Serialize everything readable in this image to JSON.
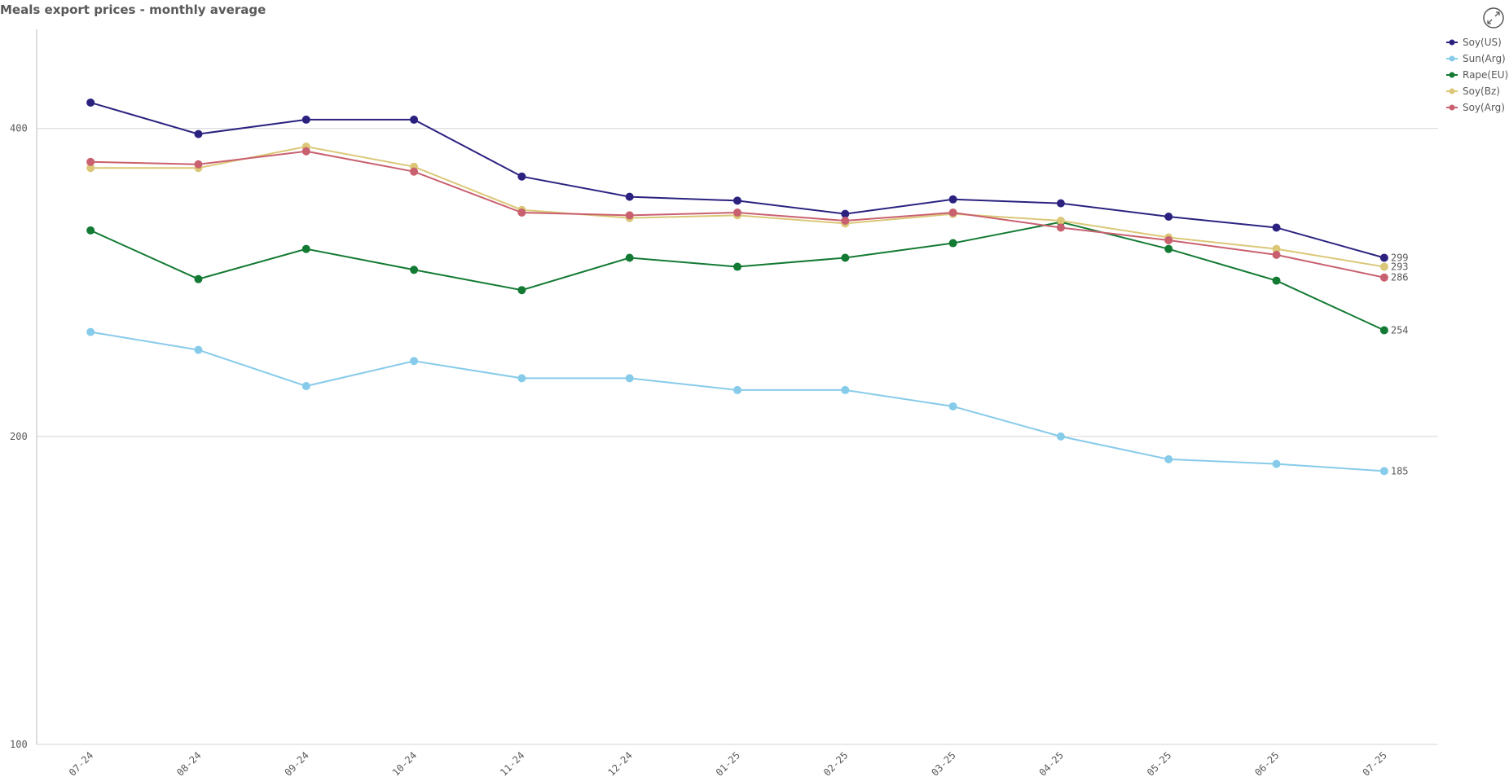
{
  "chart_data": {
    "type": "line",
    "title": "Meals export prices - monthly average",
    "categories": [
      "07-24",
      "08-24",
      "09-24",
      "10-24",
      "11-24",
      "12-24",
      "01-25",
      "02-25",
      "03-25",
      "04-25",
      "05-25",
      "06-25",
      "07-25"
    ],
    "log_scale": true,
    "ylim": [
      100,
      500
    ],
    "yticks": [
      100,
      200,
      400
    ],
    "grid": true,
    "legend": "top-right",
    "label_last": true,
    "series": [
      {
        "name": "Soy(US)",
        "color": "#2b2280",
        "values": [
          424,
          395,
          408,
          408,
          359,
          343,
          340,
          330,
          341,
          338,
          328,
          320,
          299
        ]
      },
      {
        "name": "Sun(Arg)",
        "color": "#87cbea",
        "values": [
          253,
          243,
          224,
          237,
          228,
          228,
          222,
          222,
          214,
          200,
          190,
          188,
          185
        ]
      },
      {
        "name": "Rape(EU)",
        "color": "#137a33",
        "values": [
          318,
          285,
          305,
          291,
          278,
          299,
          293,
          299,
          309,
          324,
          305,
          284,
          254
        ]
      },
      {
        "name": "Soy(Bz)",
        "color": "#dbc777",
        "values": [
          366,
          366,
          384,
          367,
          333,
          327,
          329,
          323,
          330,
          325,
          313,
          305,
          293
        ]
      },
      {
        "name": "Soy(Arg)",
        "color": "#c9606f",
        "values": [
          371,
          369,
          380,
          363,
          331,
          329,
          331,
          325,
          331,
          320,
          311,
          301,
          286
        ]
      }
    ]
  }
}
